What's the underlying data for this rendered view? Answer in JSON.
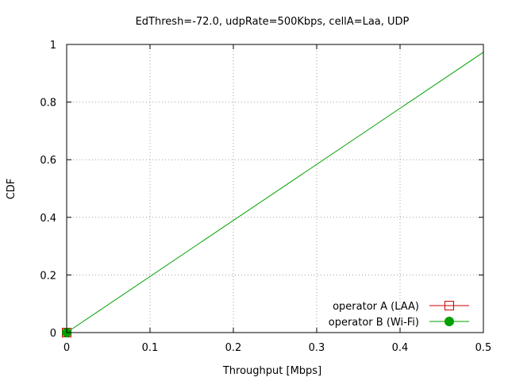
{
  "chart_data": {
    "type": "line",
    "title": "EdThresh=-72.0, udpRate=500Kbps, cellA=Laa, UDP",
    "xlabel": "Throughput [Mbps]",
    "ylabel": "CDF",
    "xlim": [
      0,
      0.5
    ],
    "ylim": [
      0,
      1
    ],
    "xticks": [
      "0",
      "0.1",
      "0.2",
      "0.3",
      "0.4",
      "0.5"
    ],
    "xtick_values": [
      0,
      0.1,
      0.2,
      0.3,
      0.4,
      0.5
    ],
    "yticks": [
      "0",
      "0.2",
      "0.4",
      "0.6",
      "0.8",
      "1"
    ],
    "ytick_values": [
      0,
      0.2,
      0.4,
      0.6,
      0.8,
      1
    ],
    "grid": true,
    "legend_position": "bottom-right",
    "series": [
      {
        "name": "operator A (LAA)",
        "color": "#cc0000",
        "marker": "open-square",
        "points": [
          [
            0,
            0
          ]
        ]
      },
      {
        "name": "operator B (Wi-Fi)",
        "color": "#00a000",
        "marker": "filled-circle",
        "points": [
          [
            0,
            0
          ],
          [
            0.5,
            0.973
          ]
        ]
      }
    ]
  }
}
